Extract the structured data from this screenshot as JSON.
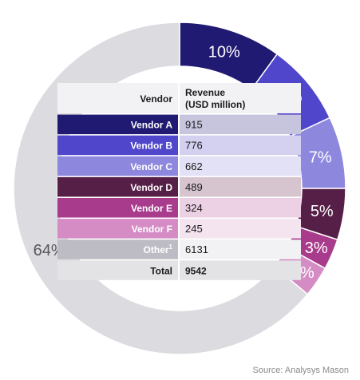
{
  "chart_data": {
    "type": "pie",
    "slices": [
      {
        "label": "Vendor A",
        "value": 10,
        "display": "10%",
        "color": "#211a72"
      },
      {
        "label": "Vendor B",
        "value": 8,
        "display": "8%",
        "color": "#5046cc"
      },
      {
        "label": "Vendor C",
        "value": 7,
        "display": "7%",
        "color": "#8e87de"
      },
      {
        "label": "Vendor D",
        "value": 5,
        "display": "5%",
        "color": "#561f48"
      },
      {
        "label": "Vendor E",
        "value": 3,
        "display": "3%",
        "color": "#a83b8c"
      },
      {
        "label": "Vendor F",
        "value": 3,
        "display": "3%",
        "color": "#d58cc5"
      },
      {
        "label": "Other",
        "value": 64,
        "display": "64%",
        "color": "#dcdbe0"
      }
    ],
    "table": {
      "header_vendor": "Vendor",
      "header_revenue_line1": "Revenue",
      "header_revenue_line2": "(USD million)",
      "rows": [
        {
          "vendor": "Vendor A",
          "revenue": "915",
          "color": "#211a72",
          "value_bg": "#c7c5dd"
        },
        {
          "vendor": "Vendor B",
          "revenue": "776",
          "color": "#5046cc",
          "value_bg": "#d3d0f0"
        },
        {
          "vendor": "Vendor C",
          "revenue": "662",
          "color": "#8e87de",
          "value_bg": "#e3e1f5"
        },
        {
          "vendor": "Vendor D",
          "revenue": "489",
          "color": "#561f48",
          "value_bg": "#d6c5cf"
        },
        {
          "vendor": "Vendor E",
          "revenue": "324",
          "color": "#a83b8c",
          "value_bg": "#ecd0e4"
        },
        {
          "vendor": "Vendor F",
          "revenue": "245",
          "color": "#d58cc5",
          "value_bg": "#f4e4f0"
        },
        {
          "vendor": "Other",
          "superscript": "1",
          "revenue": "6131",
          "color": "#bdbcc4",
          "value_bg": "#f2f2f4"
        }
      ],
      "total_label": "Total",
      "total_value": "9542"
    }
  },
  "source": "Source: Analysys Mason"
}
